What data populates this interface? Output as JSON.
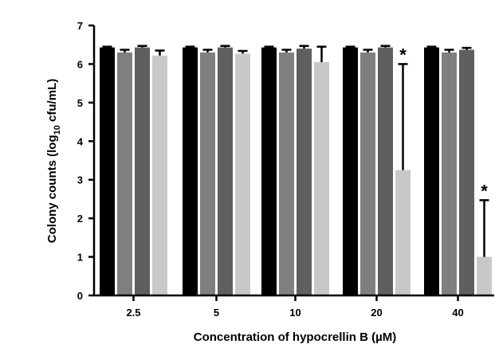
{
  "chart_data": {
    "type": "bar",
    "title": "",
    "xlabel": "Concentration of hypocrellin B (µM)",
    "ylabel_main": "Colony counts (log",
    "ylabel_sub": "10",
    "ylabel_tail": " cfu/mL)",
    "ylim": [
      0,
      7
    ],
    "yticks": [
      "0",
      "1",
      "2",
      "3",
      "4",
      "5",
      "6",
      "7"
    ],
    "categories": [
      "2.5",
      "5",
      "10",
      "20",
      "40"
    ],
    "grid": false,
    "legend": "none",
    "significance_marker": "*",
    "series": [
      {
        "color": "#000000",
        "values": [
          6.43,
          6.43,
          6.43,
          6.43,
          6.43
        ],
        "errors": [
          0.02,
          0.02,
          0.02,
          0.02,
          0.02
        ]
      },
      {
        "color": "#7f7f7f",
        "values": [
          6.3,
          6.3,
          6.3,
          6.3,
          6.3
        ],
        "errors": [
          0.07,
          0.07,
          0.07,
          0.07,
          0.07
        ]
      },
      {
        "color": "#5f5f5f",
        "values": [
          6.43,
          6.43,
          6.4,
          6.43,
          6.37
        ],
        "errors": [
          0.04,
          0.04,
          0.07,
          0.04,
          0.05
        ]
      },
      {
        "color": "#c8c8c8",
        "values": [
          6.22,
          6.27,
          6.05,
          3.25,
          1.0
        ],
        "errors": [
          0.13,
          0.07,
          0.4,
          2.75,
          1.47
        ]
      }
    ],
    "significant": [
      [
        3,
        3
      ],
      [
        3,
        4
      ]
    ]
  }
}
